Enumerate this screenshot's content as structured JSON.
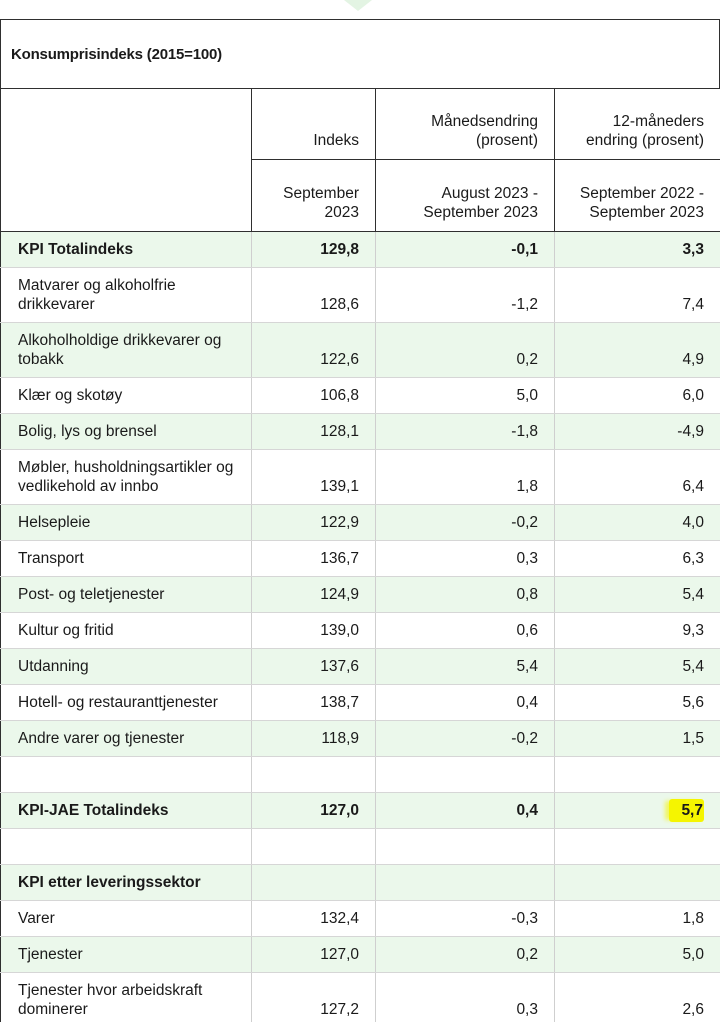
{
  "table": {
    "caption": "Konsumprisindeks (2015=100)",
    "columns": [
      {
        "header": "Indeks",
        "period": "September 2023"
      },
      {
        "header": "Månedsendring (prosent)",
        "period": "August 2023 - September 2023"
      },
      {
        "header": "12-måneders endring (prosent)",
        "period": "September 2022 - September 2023"
      }
    ],
    "rows": [
      {
        "label": "KPI Totalindeks",
        "indeks": "129,8",
        "maned": "-0,1",
        "tolv": "3,3"
      },
      {
        "label": "Matvarer og alkoholfrie drikkevarer",
        "indeks": "128,6",
        "maned": "-1,2",
        "tolv": "7,4"
      },
      {
        "label": "Alkoholholdige drikkevarer og tobakk",
        "indeks": "122,6",
        "maned": "0,2",
        "tolv": "4,9"
      },
      {
        "label": "Klær og skotøy",
        "indeks": "106,8",
        "maned": "5,0",
        "tolv": "6,0"
      },
      {
        "label": "Bolig, lys og brensel",
        "indeks": "128,1",
        "maned": "-1,8",
        "tolv": "-4,9"
      },
      {
        "label": "Møbler, husholdningsartikler og vedlikehold av innbo",
        "indeks": "139,1",
        "maned": "1,8",
        "tolv": "6,4"
      },
      {
        "label": "Helsepleie",
        "indeks": "122,9",
        "maned": "-0,2",
        "tolv": "4,0"
      },
      {
        "label": "Transport",
        "indeks": "136,7",
        "maned": "0,3",
        "tolv": "6,3"
      },
      {
        "label": "Post- og teletjenester",
        "indeks": "124,9",
        "maned": "0,8",
        "tolv": "5,4"
      },
      {
        "label": "Kultur og fritid",
        "indeks": "139,0",
        "maned": "0,6",
        "tolv": "9,3"
      },
      {
        "label": "Utdanning",
        "indeks": "137,6",
        "maned": "5,4",
        "tolv": "5,4"
      },
      {
        "label": "Hotell- og restauranttjenester",
        "indeks": "138,7",
        "maned": "0,4",
        "tolv": "5,6"
      },
      {
        "label": "Andre varer og tjenester",
        "indeks": "118,9",
        "maned": "-0,2",
        "tolv": "1,5"
      },
      {
        "label": "KPI-JAE Totalindeks",
        "indeks": "127,0",
        "maned": "0,4",
        "tolv": "5,7"
      },
      {
        "label": "KPI etter leveringssektor"
      },
      {
        "label": "Varer",
        "indeks": "132,4",
        "maned": "-0,3",
        "tolv": "1,8"
      },
      {
        "label": "Tjenester",
        "indeks": "127,0",
        "maned": "0,2",
        "tolv": "5,0"
      },
      {
        "label": "Tjenester hvor arbeidskraft dominerer",
        "indeks": "127,2",
        "maned": "0,3",
        "tolv": "2,6"
      }
    ],
    "highlight_color": "#f5f500",
    "row_alt_color": "#ebf8eb"
  }
}
